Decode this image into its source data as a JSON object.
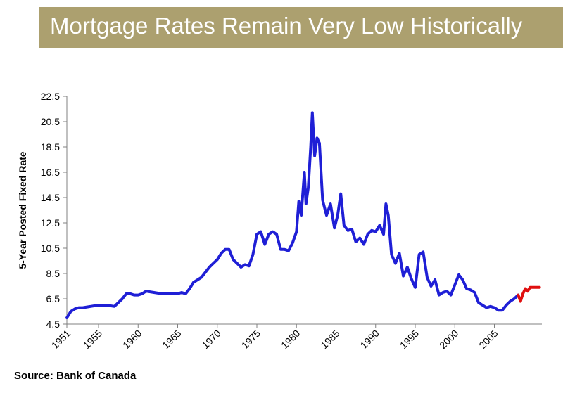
{
  "header": {
    "title": "Mortgage Rates Remain Very Low Historically"
  },
  "source": "Source: Bank of Canada",
  "colors": {
    "title_band": "#aca06f",
    "historical_line": "#1f1fd6",
    "recent_line": "#e01010"
  },
  "chart_data": {
    "type": "line",
    "title": "",
    "xlabel": "",
    "ylabel": "5-Year Posted Fixed Rate",
    "xlim": [
      1951,
      2011
    ],
    "ylim": [
      4.5,
      22.5
    ],
    "y_ticks": [
      "4.5",
      "6.5",
      "8.5",
      "10.5",
      "12.5",
      "14.5",
      "16.5",
      "18.5",
      "20.5",
      "22.5"
    ],
    "x_ticks": [
      "1951",
      "1955",
      "1960",
      "1965",
      "1970",
      "1975",
      "1980",
      "1985",
      "1990",
      "1995",
      "2000",
      "2005"
    ],
    "grid": false,
    "legend": "none",
    "series": [
      {
        "color": "#1f1fd6",
        "x": [
          1951.0,
          1951.5,
          1952.0,
          1952.5,
          1953.0,
          1954.0,
          1955.0,
          1956.0,
          1957.0,
          1957.5,
          1958.0,
          1958.5,
          1959.0,
          1959.5,
          1960.0,
          1960.5,
          1961.0,
          1962.0,
          1963.0,
          1964.0,
          1965.0,
          1965.5,
          1966.0,
          1966.5,
          1967.0,
          1968.0,
          1969.0,
          1969.5,
          1970.0,
          1970.5,
          1971.0,
          1971.5,
          1972.0,
          1972.5,
          1973.0,
          1973.5,
          1974.0,
          1974.5,
          1975.0,
          1975.5,
          1976.0,
          1976.5,
          1977.0,
          1977.5,
          1978.0,
          1978.5,
          1979.0,
          1979.5,
          1980.0,
          1980.3,
          1980.6,
          1981.0,
          1981.2,
          1981.5,
          1981.8,
          1982.0,
          1982.3,
          1982.6,
          1982.9,
          1983.3,
          1983.8,
          1984.3,
          1984.8,
          1985.2,
          1985.6,
          1986.0,
          1986.5,
          1987.0,
          1987.5,
          1988.0,
          1988.5,
          1989.0,
          1989.5,
          1990.0,
          1990.5,
          1991.0,
          1991.3,
          1991.6,
          1992.0,
          1992.5,
          1993.0,
          1993.5,
          1994.0,
          1994.5,
          1995.0,
          1995.5,
          1996.0,
          1996.5,
          1997.0,
          1997.5,
          1998.0,
          1998.5,
          1999.0,
          1999.5,
          2000.0,
          2000.5,
          2001.0,
          2001.5,
          2002.0,
          2002.5,
          2003.0,
          2003.5,
          2004.0,
          2004.5,
          2005.0,
          2005.5,
          2006.0,
          2006.5,
          2007.0,
          2007.5,
          2008.0
        ],
        "y": [
          5.0,
          5.5,
          5.7,
          5.8,
          5.8,
          5.9,
          6.0,
          6.0,
          5.9,
          6.2,
          6.5,
          6.9,
          6.9,
          6.8,
          6.8,
          6.9,
          7.1,
          7.0,
          6.9,
          6.9,
          6.9,
          7.0,
          6.9,
          7.3,
          7.8,
          8.2,
          9.0,
          9.3,
          9.6,
          10.1,
          10.4,
          10.4,
          9.6,
          9.3,
          9.0,
          9.2,
          9.1,
          10.0,
          11.6,
          11.8,
          10.8,
          11.6,
          11.8,
          11.6,
          10.4,
          10.4,
          10.3,
          10.9,
          11.8,
          14.2,
          13.1,
          16.5,
          14.0,
          15.3,
          18.5,
          21.2,
          17.8,
          19.2,
          18.8,
          14.3,
          13.1,
          14.0,
          12.1,
          13.1,
          14.8,
          12.3,
          11.9,
          12.0,
          11.0,
          11.3,
          10.8,
          11.6,
          11.9,
          11.8,
          12.3,
          11.6,
          14.0,
          13.1,
          10.0,
          9.3,
          10.1,
          8.3,
          9.0,
          8.1,
          7.4,
          10.0,
          10.2,
          8.2,
          7.5,
          8.0,
          6.8,
          7.0,
          7.1,
          6.8,
          7.6,
          8.4,
          8.0,
          7.3,
          7.2,
          7.0,
          6.2,
          6.0,
          5.8,
          5.9,
          5.8,
          5.6,
          5.6,
          6.0,
          6.3,
          6.5,
          6.8
        ]
      },
      {
        "color": "#e01010",
        "x": [
          2008.0,
          2008.3,
          2008.6,
          2008.9,
          2009.2,
          2009.5,
          2009.8,
          2010.2,
          2010.7
        ],
        "y": [
          6.8,
          6.3,
          6.9,
          7.3,
          7.1,
          7.4,
          7.4,
          7.4,
          7.4
        ]
      }
    ]
  }
}
